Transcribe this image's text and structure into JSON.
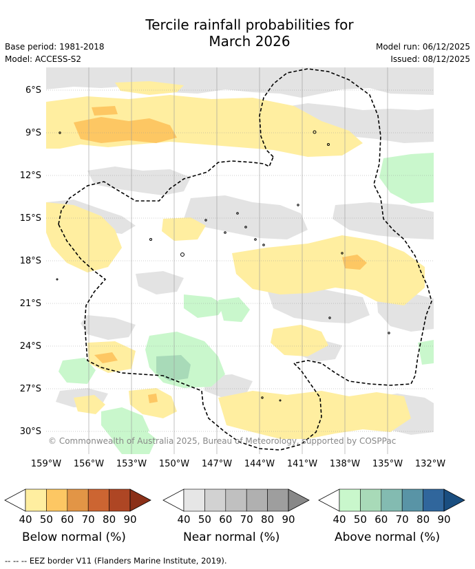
{
  "title_line1": "Tercile rainfall probabilities for",
  "title_line2": "March 2026",
  "base_period": "Base period: 1981-2018",
  "model": "Model: ACCESS-S2",
  "model_run": "Model run: 06/12/2025",
  "issued": "Issued: 08/12/2025",
  "lat_labels": [
    "6°S",
    "9°S",
    "12°S",
    "15°S",
    "18°S",
    "21°S",
    "24°S",
    "27°S",
    "30°S"
  ],
  "lon_labels": [
    "159°W",
    "156°W",
    "153°W",
    "150°W",
    "147°W",
    "144°W",
    "141°W",
    "138°W",
    "135°W",
    "132°W"
  ],
  "copyright": "© Commonwealth of Australia 2025, Bureau of Meteorology, supported by COSPPac",
  "colorbars": [
    {
      "name": "below",
      "title": "Below normal (%)",
      "colors": [
        "#ffeea0",
        "#fdc763",
        "#e29546",
        "#cc6532",
        "#ae4624",
        "#8b3018"
      ],
      "ticks": [
        "40",
        "50",
        "60",
        "70",
        "80",
        "90"
      ]
    },
    {
      "name": "near",
      "title": "Near normal (%)",
      "colors": [
        "#e6e6e6",
        "#d2d2d2",
        "#c0c0c0",
        "#b0b0b0",
        "#9e9e9e",
        "#888888"
      ],
      "ticks": [
        "40",
        "50",
        "60",
        "70",
        "80",
        "90"
      ]
    },
    {
      "name": "above",
      "title": "Above normal (%)",
      "colors": [
        "#c9f7cc",
        "#a8dab8",
        "#83bbb1",
        "#5994a6",
        "#30669c",
        "#1a4e80"
      ],
      "ticks": [
        "40",
        "50",
        "60",
        "70",
        "80",
        "90"
      ]
    }
  ],
  "footnote": "-- -- -- EEZ border V11 (Flanders Marine Institute, 2019)."
}
